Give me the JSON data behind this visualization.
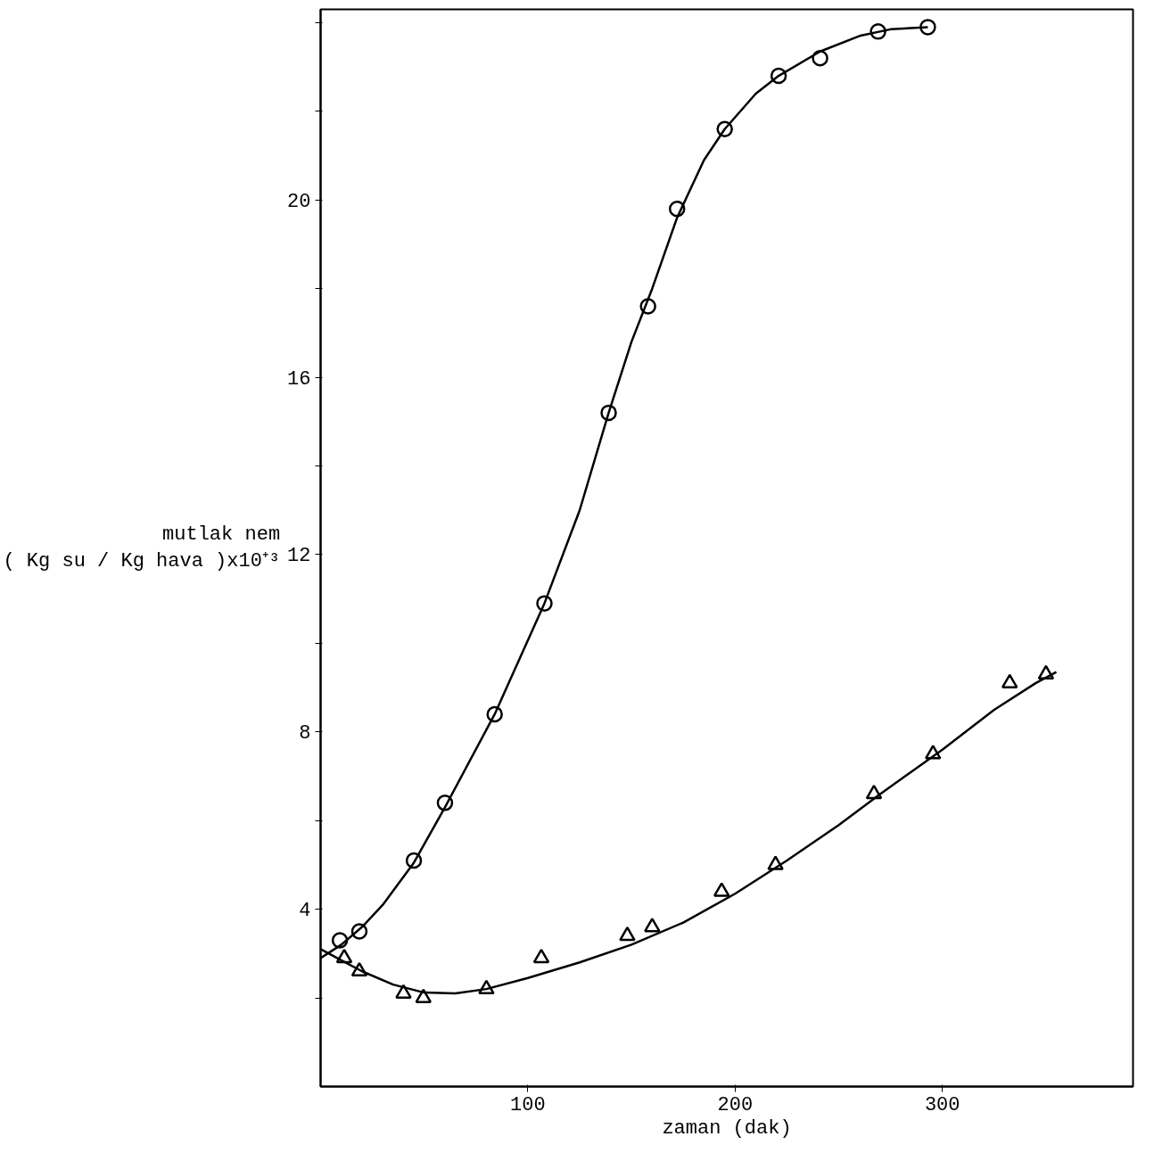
{
  "chart_data": {
    "type": "scatter",
    "xlabel": "zaman (dak)",
    "ylabel": "mutlak nem\n( Kg su / Kg hava )x10⁺³",
    "xlim": [
      0,
      392
    ],
    "ylim": [
      0,
      24.3
    ],
    "xticks": [
      100,
      200,
      300
    ],
    "yticks": [
      {
        "value": 2,
        "label": null
      },
      4,
      {
        "value": 6,
        "label": null
      },
      8,
      {
        "value": 10,
        "label": null
      },
      12,
      {
        "value": 14,
        "label": null
      },
      16,
      {
        "value": 18,
        "label": null
      },
      20,
      {
        "value": 22,
        "label": null
      },
      {
        "value": 24,
        "label": null
      }
    ],
    "grid": false,
    "series": [
      {
        "marker": "circle",
        "color": "#000000",
        "x": [
          9.3,
          18.7,
          45,
          60,
          84,
          108,
          139,
          158,
          172,
          195,
          221,
          241,
          269,
          293
        ],
        "values": [
          3.3,
          3.5,
          5.1,
          6.4,
          8.4,
          10.9,
          15.2,
          17.6,
          19.8,
          21.6,
          22.8,
          23.2,
          23.8,
          23.9
        ]
      },
      {
        "marker": "triangle",
        "color": "#000000",
        "x": [
          11.4,
          18.7,
          40,
          49.6,
          80,
          106.5,
          148,
          160,
          193.5,
          219.5,
          267,
          295.5,
          332.5,
          350
        ],
        "values": [
          2.9,
          2.6,
          2.1,
          2.0,
          2.2,
          2.9,
          3.4,
          3.6,
          4.4,
          5.0,
          6.6,
          7.5,
          9.1,
          9.3
        ]
      },
      {
        "type": "line",
        "marker": "none",
        "line_style": "solid",
        "color": "#000000",
        "x": [
          0,
          10,
          20,
          30,
          45,
          60,
          84,
          108,
          125,
          139,
          150,
          160,
          172,
          185,
          195,
          210,
          221,
          241,
          260,
          275,
          293
        ],
        "values": [
          2.9,
          3.2,
          3.6,
          4.1,
          5.05,
          6.3,
          8.4,
          10.9,
          13,
          15.2,
          16.8,
          18,
          19.6,
          20.9,
          21.6,
          22.4,
          22.8,
          23.35,
          23.7,
          23.85,
          23.9
        ]
      },
      {
        "type": "line",
        "marker": "none",
        "line_style": "solid",
        "color": "#000000",
        "x": [
          0,
          10,
          20,
          35,
          50,
          65,
          80,
          100,
          125,
          150,
          175,
          200,
          225,
          250,
          270,
          300,
          325,
          345,
          355
        ],
        "values": [
          3.1,
          2.85,
          2.6,
          2.3,
          2.12,
          2.1,
          2.2,
          2.45,
          2.8,
          3.2,
          3.7,
          4.35,
          5.1,
          5.9,
          6.6,
          7.6,
          8.5,
          9.1,
          9.35
        ]
      }
    ]
  }
}
